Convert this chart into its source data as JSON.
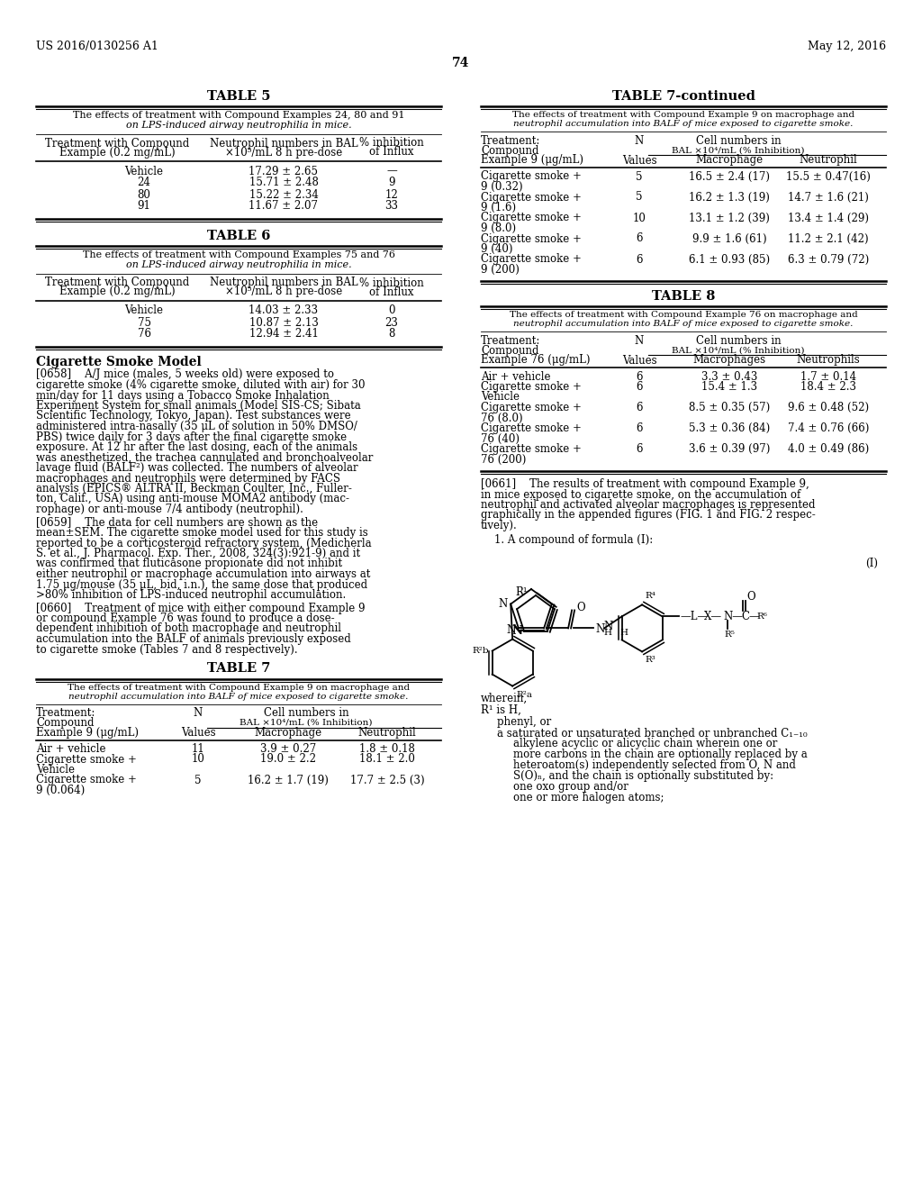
{
  "header_left": "US 2016/0130256 A1",
  "header_right": "May 12, 2016",
  "page_number": "74",
  "bg_color": "#ffffff"
}
